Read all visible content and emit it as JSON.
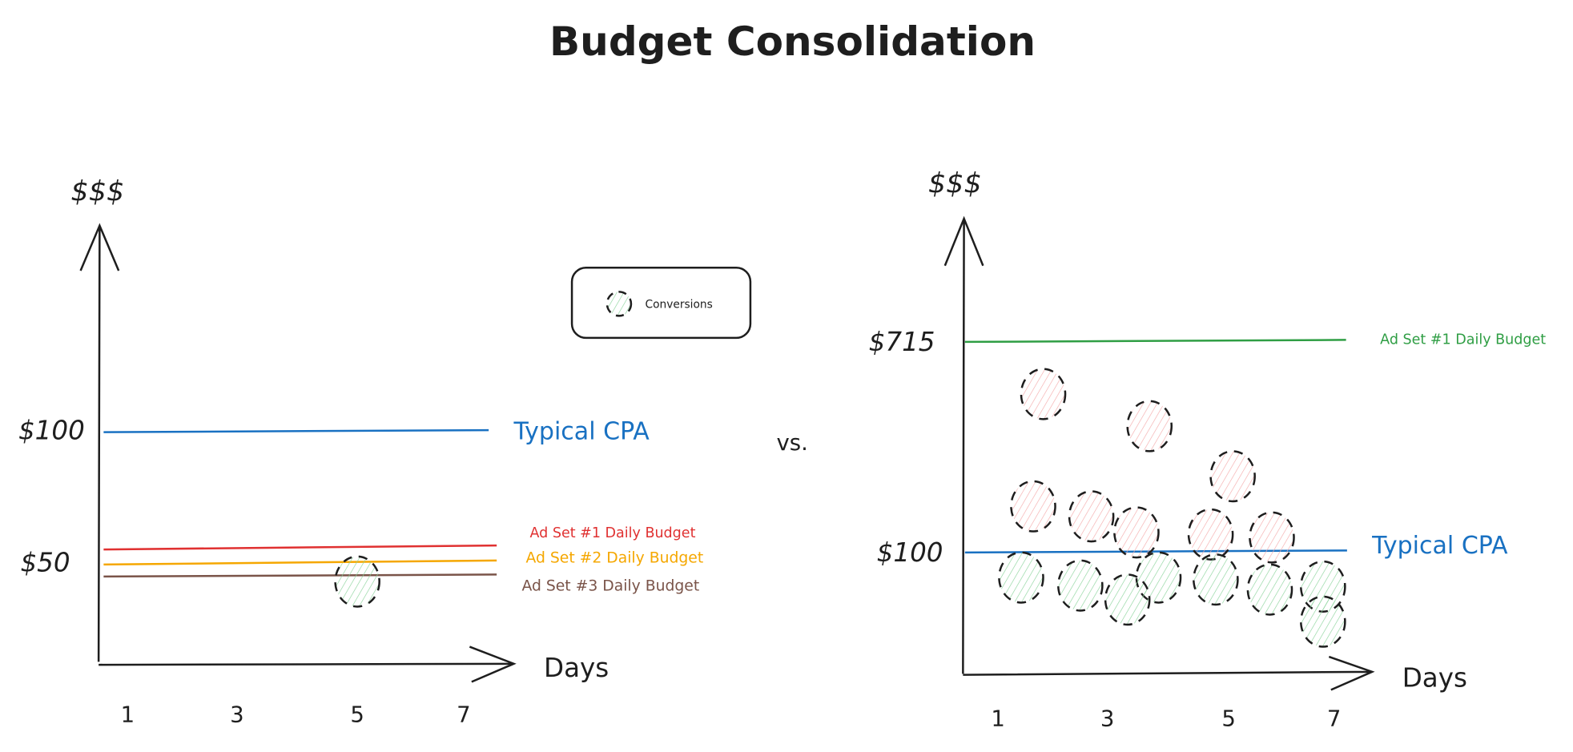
{
  "title": "Budget Consolidation",
  "separator": "vs.",
  "colors": {
    "ink": "#1e1e1e",
    "cpa": "#1971c2",
    "adset1_left": "#e03131",
    "adset2": "#f5a700",
    "adset3": "#7a5449",
    "adset1_right": "#2f9e44",
    "conversion_good": "#8ad39a",
    "conversion_bad": "#f4a9a9"
  },
  "legend": {
    "conversions_label": "Conversions"
  },
  "left_chart": {
    "y_axis_label": "$$$",
    "x_axis_label": "Days",
    "y_ticks": [
      "$100",
      "$50"
    ],
    "x_ticks": [
      "1",
      "3",
      "5",
      "7"
    ],
    "lines": {
      "cpa_label": "Typical CPA",
      "adset1_label": "Ad Set #1 Daily Budget",
      "adset2_label": "Ad Set #2 Daily Budget",
      "adset3_label": "Ad Set #3 Daily Budget"
    }
  },
  "right_chart": {
    "y_axis_label": "$$$",
    "x_axis_label": "Days",
    "y_ticks": [
      "$715",
      "$100"
    ],
    "x_ticks": [
      "1",
      "3",
      "5",
      "7"
    ],
    "lines": {
      "budget_label": "Ad Set #1 Daily Budget",
      "cpa_label": "Typical CPA"
    }
  }
}
